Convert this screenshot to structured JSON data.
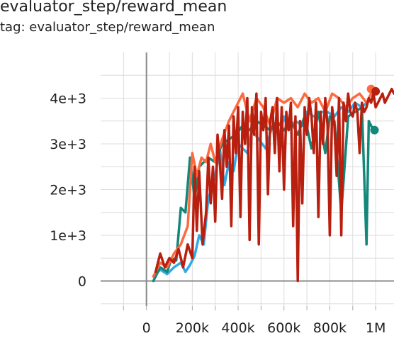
{
  "card": {
    "title": "evaluator_step/reward_mean",
    "tag": "tag: evaluator_step/reward_mean"
  },
  "chart_data": {
    "type": "line",
    "title": "evaluator_step/reward_mean",
    "xlabel": "",
    "ylabel": "",
    "xlim": [
      -200000,
      1080000
    ],
    "ylim": [
      -550,
      5000
    ],
    "x_ticks": [
      0,
      200000,
      400000,
      600000,
      800000,
      1000000
    ],
    "x_tick_labels": [
      "0",
      "200k",
      "400k",
      "600k",
      "800k",
      "1M"
    ],
    "y_ticks": [
      0,
      1000,
      2000,
      3000,
      4000
    ],
    "y_tick_labels": [
      "0",
      "1e+3",
      "2e+3",
      "3e+3",
      "4e+3"
    ],
    "grid": true,
    "legend": "none",
    "series": [
      {
        "color": "#33a9e8",
        "x": [
          30000,
          60000,
          90000,
          120000,
          150000,
          170000,
          190000,
          210000,
          230000,
          250000,
          270000,
          300000,
          320000,
          340000,
          360000,
          380000,
          400000,
          420000,
          440000,
          460000,
          490000,
          520000,
          550000,
          580000,
          600000,
          620000,
          650000,
          680000,
          700000,
          730000,
          760000,
          790000,
          820000,
          850000,
          880000,
          910000,
          940000,
          960000,
          990000
        ],
        "y": [
          100,
          250,
          150,
          300,
          400,
          200,
          350,
          550,
          1000,
          800,
          1800,
          2300,
          2900,
          2100,
          2600,
          2400,
          3000,
          2900,
          2800,
          3300,
          3100,
          2900,
          3400,
          3200,
          3600,
          3300,
          3500,
          3400,
          3700,
          3600,
          3700,
          3700,
          3600,
          3800,
          3700,
          3900,
          3800,
          3900,
          4000
        ]
      },
      {
        "color": "#13887a",
        "x": [
          30000,
          60000,
          90000,
          110000,
          130000,
          150000,
          170000,
          190000,
          210000,
          230000,
          250000,
          270000,
          300000,
          330000,
          360000,
          390000,
          420000,
          450000,
          480000,
          510000,
          540000,
          570000,
          600000,
          630000,
          660000,
          690000,
          720000,
          750000,
          780000,
          800000,
          820000,
          850000,
          880000,
          910000,
          940000,
          960000,
          970000,
          990000
        ],
        "y": [
          0,
          300,
          200,
          500,
          450,
          1600,
          1500,
          2700,
          1800,
          2500,
          2600,
          2700,
          2600,
          3000,
          3100,
          3200,
          3400,
          3300,
          3500,
          3400,
          3300,
          3500,
          3300,
          3500,
          3200,
          3600,
          2900,
          3700,
          2800,
          3600,
          3500,
          1500,
          3600,
          3700,
          3800,
          800,
          3500,
          3300
        ]
      },
      {
        "color": "#fe6a3f",
        "x": [
          30000,
          60000,
          90000,
          120000,
          150000,
          180000,
          200000,
          220000,
          240000,
          260000,
          280000,
          300000,
          330000,
          360000,
          390000,
          420000,
          450000,
          480000,
          510000,
          540000,
          570000,
          600000,
          630000,
          660000,
          690000,
          720000,
          750000,
          780000,
          810000,
          840000,
          870000,
          900000,
          930000,
          960000,
          990000
        ],
        "y": [
          100,
          400,
          300,
          600,
          800,
          1200,
          2800,
          2300,
          2700,
          2600,
          3000,
          2600,
          3100,
          3500,
          3800,
          4100,
          3500,
          4000,
          3800,
          3400,
          4000,
          3900,
          4000,
          3800,
          4100,
          3900,
          4000,
          3700,
          4100,
          4000,
          3800,
          4000,
          4100,
          3900,
          4200
        ]
      },
      {
        "color": "#b91f0e",
        "x": [
          40000,
          60000,
          80000,
          100000,
          120000,
          140000,
          160000,
          180000,
          200000,
          210000,
          220000,
          230000,
          245000,
          260000,
          270000,
          280000,
          290000,
          300000,
          310000,
          320000,
          330000,
          340000,
          350000,
          360000,
          370000,
          380000,
          390000,
          400000,
          410000,
          420000,
          430000,
          440000,
          450000,
          460000,
          470000,
          480000,
          490000,
          500000,
          510000,
          520000,
          530000,
          540000,
          550000,
          560000,
          570000,
          580000,
          590000,
          600000,
          610000,
          620000,
          630000,
          640000,
          650000,
          660000,
          670000,
          680000,
          690000,
          700000,
          710000,
          720000,
          730000,
          740000,
          750000,
          760000,
          770000,
          780000,
          790000,
          800000,
          810000,
          820000,
          830000,
          840000,
          850000,
          860000,
          870000,
          880000,
          890000,
          900000,
          910000,
          920000,
          930000,
          940000,
          950000,
          960000,
          970000,
          980000,
          990000,
          1000000,
          1010000,
          1020000,
          1030000,
          1040000,
          1050000,
          1060000,
          1070000,
          1080000
        ],
        "y": [
          200,
          600,
          300,
          500,
          400,
          700,
          300,
          800,
          500,
          2500,
          1100,
          2400,
          800,
          1500,
          2700,
          1700,
          2500,
          1300,
          3200,
          2600,
          1800,
          3300,
          2500,
          3400,
          1200,
          3600,
          2800,
          3800,
          1400,
          3700,
          3000,
          4000,
          900,
          3800,
          3200,
          4100,
          800,
          3700,
          3300,
          4000,
          1900,
          3500,
          3800,
          2800,
          4000,
          2400,
          3800,
          2000,
          3700,
          3300,
          3900,
          1200,
          3600,
          0,
          3500,
          1700,
          3800,
          3200,
          4000,
          3600,
          2800,
          3900,
          1400,
          3700,
          3000,
          4000,
          3400,
          1000,
          3800,
          3400,
          2300,
          4000,
          1000,
          3900,
          3500,
          4100,
          3700,
          3600,
          3900,
          3700,
          2800,
          3900,
          3700,
          3800,
          4000,
          3900,
          4100,
          3800,
          3900,
          4000,
          4100,
          3900,
          4000,
          4100,
          4200,
          4100
        ]
      }
    ],
    "end_markers": [
      {
        "color": "#fe6a3f",
        "x": 980000,
        "y": 4200
      },
      {
        "color": "#b91f0e",
        "x": 1000000,
        "y": 4150
      },
      {
        "color": "#13887a",
        "x": 995000,
        "y": 3300
      }
    ]
  }
}
